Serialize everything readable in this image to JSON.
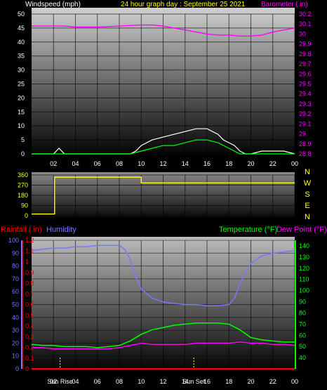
{
  "colors": {
    "wind": "#ffffff",
    "windAvg": "#00ff00",
    "barometer": "#ff00ff",
    "direction": "#ffff00",
    "humidity": "#7777ff",
    "temperature": "#00ff00",
    "dewpoint": "#ff00ff",
    "rainfall": "#ff0000",
    "sun": "#ffff00",
    "frame": "#000000"
  },
  "header": {
    "wind_label": "Windspeed (mph)",
    "date_label": "24 hour graph day : September 25 2021",
    "baro_label": "Barometer (.in)"
  },
  "bottom_header": {
    "rain_label": "Rainfall (.in)",
    "humidity_label": "Humidity",
    "temp_label": "Temperature (°F)",
    "dew_label": "Dew Point (°F)"
  },
  "x_ticks": [
    "02",
    "04",
    "06",
    "08",
    "10",
    "12",
    "14",
    "16",
    "18",
    "20",
    "22",
    "00"
  ],
  "compass": [
    "N",
    "W",
    "S",
    "E",
    "N"
  ],
  "sun": {
    "rise_label": "Sun Rise",
    "set_label": "Sun Set",
    "rise_hour": 2.6,
    "set_hour": 14.8
  },
  "chart_data": [
    {
      "type": "line",
      "title": "24 hour graph day : September 25 2021",
      "xlabel": "",
      "x_range_hours": [
        0,
        24
      ],
      "left_axis": {
        "label": "Windspeed (mph)",
        "range": [
          0,
          50
        ],
        "ticks": [
          "0",
          "5",
          "10",
          "15",
          "20",
          "25",
          "30",
          "35",
          "40",
          "45",
          "50"
        ]
      },
      "right_axis": {
        "label": "Barometer (.in)",
        "range": [
          28.8,
          30.2
        ],
        "ticks": [
          "28.8",
          "28.9",
          "29",
          "29.1",
          "29.2",
          "29.3",
          "29.4",
          "29.5",
          "29.6",
          "29.7",
          "29.8",
          "29.9",
          "30",
          "30.1",
          "30.2"
        ]
      },
      "series": [
        {
          "name": "Barometer (.in)",
          "axis": "right",
          "x": [
            0,
            1,
            2,
            3,
            4,
            5,
            6,
            7,
            8,
            9,
            10,
            11,
            12,
            13,
            14,
            15,
            16,
            17,
            18,
            19,
            20,
            21,
            22,
            23,
            24
          ],
          "values": [
            30.08,
            30.08,
            30.08,
            30.08,
            30.07,
            30.07,
            30.07,
            30.075,
            30.08,
            30.085,
            30.09,
            30.09,
            30.08,
            30.06,
            30.04,
            30.02,
            30.0,
            29.99,
            29.99,
            29.98,
            29.98,
            29.99,
            30.02,
            30.04,
            30.06
          ]
        },
        {
          "name": "Windspeed (mph)",
          "axis": "left",
          "x": [
            0,
            1,
            2,
            2.5,
            3,
            4,
            5,
            6,
            7,
            8,
            9,
            9.5,
            10,
            11,
            12,
            13,
            14,
            15,
            16,
            17,
            17.5,
            18,
            18.5,
            19,
            19.5,
            20,
            21,
            22,
            23,
            24
          ],
          "values": [
            0,
            0,
            0,
            2,
            0,
            0,
            0,
            0,
            0,
            0,
            0,
            1,
            3,
            5,
            6,
            7,
            8,
            9,
            9,
            7,
            5,
            4,
            3,
            1,
            0,
            0,
            1,
            1,
            1,
            0
          ]
        },
        {
          "name": "Average wind",
          "axis": "left",
          "x": [
            0,
            9,
            10,
            11,
            12,
            13,
            14,
            15,
            16,
            17,
            18,
            19,
            20,
            24
          ],
          "values": [
            0,
            0,
            1,
            2,
            3,
            3,
            4,
            5,
            5,
            4,
            2,
            0,
            0,
            0
          ]
        }
      ]
    },
    {
      "type": "line",
      "title": "",
      "x_range_hours": [
        0,
        24
      ],
      "left_axis": {
        "label": "",
        "range": [
          0,
          360
        ],
        "ticks": [
          "0",
          "90",
          "180",
          "270",
          "360"
        ]
      },
      "right_axis": {
        "label": "",
        "ticks": [
          "N",
          "W",
          "S",
          "E",
          "N"
        ]
      },
      "series": [
        {
          "name": "",
          "x": [
            0,
            2.1,
            2.1,
            10,
            10,
            24
          ],
          "values": [
            15,
            15,
            340,
            340,
            290,
            290
          ]
        }
      ]
    },
    {
      "type": "line",
      "title": "",
      "x_range_hours": [
        0,
        24
      ],
      "rain_axis": {
        "label": "Rainfall (.in)",
        "range": [
          0,
          1.2
        ],
        "ticks": [
          "0",
          "0.1",
          "0.2",
          "0.3",
          "0.4",
          "0.5",
          "0.6",
          "0.7",
          "0.8",
          "0.9",
          "1",
          "1.1",
          "1.2"
        ]
      },
      "humidity_axis": {
        "label": "Humidity",
        "range": [
          0,
          100
        ],
        "ticks": [
          "0",
          "10",
          "20",
          "30",
          "40",
          "50",
          "60",
          "70",
          "80",
          "90",
          "100"
        ]
      },
      "temp_axis": {
        "label": "Temperature (°F)",
        "range": [
          30,
          145
        ],
        "ticks": [
          "40",
          "50",
          "60",
          "70",
          "80",
          "90",
          "100",
          "110",
          "120",
          "130",
          "140"
        ]
      },
      "series": [
        {
          "name": "Humidity",
          "axis": "humidity",
          "x": [
            0,
            1,
            2,
            3,
            4,
            5,
            6,
            7,
            8,
            8.5,
            9,
            9.5,
            10,
            11,
            12,
            13,
            14,
            15,
            16,
            17,
            18,
            18.5,
            19,
            19.5,
            20,
            21,
            22,
            23,
            24
          ],
          "values": [
            92,
            93,
            94,
            94,
            95,
            95,
            96,
            96,
            96,
            93,
            85,
            72,
            62,
            55,
            52,
            51,
            50,
            50,
            49,
            49,
            50,
            55,
            66,
            75,
            82,
            88,
            90,
            91,
            92
          ]
        },
        {
          "name": "Temperature (°F)",
          "axis": "temp",
          "x": [
            0,
            1,
            2,
            3,
            4,
            5,
            6,
            7,
            8,
            9,
            10,
            11,
            12,
            13,
            14,
            15,
            16,
            17,
            18,
            19,
            20,
            21,
            22,
            23,
            24
          ],
          "values": [
            52,
            51,
            51,
            50,
            50,
            50,
            49,
            50,
            51,
            55,
            61,
            65,
            67,
            69,
            70,
            71,
            71,
            71,
            70,
            65,
            58,
            56,
            55,
            54,
            54
          ]
        },
        {
          "name": "Dew Point (°F)",
          "axis": "temp",
          "x": [
            0,
            1,
            2,
            3,
            4,
            5,
            6,
            7,
            8,
            9,
            10,
            11,
            12,
            13,
            14,
            15,
            16,
            17,
            18,
            19,
            20,
            21,
            22,
            23,
            24
          ],
          "values": [
            49,
            49,
            48,
            48,
            48,
            48,
            48,
            48,
            49,
            51,
            53,
            52,
            52,
            52,
            52,
            53,
            53,
            53,
            53,
            54,
            53,
            53,
            52,
            52,
            51
          ]
        },
        {
          "name": "Rainfall (.in)",
          "axis": "rain",
          "x": [
            0,
            24
          ],
          "values": [
            0,
            0
          ]
        }
      ]
    }
  ]
}
